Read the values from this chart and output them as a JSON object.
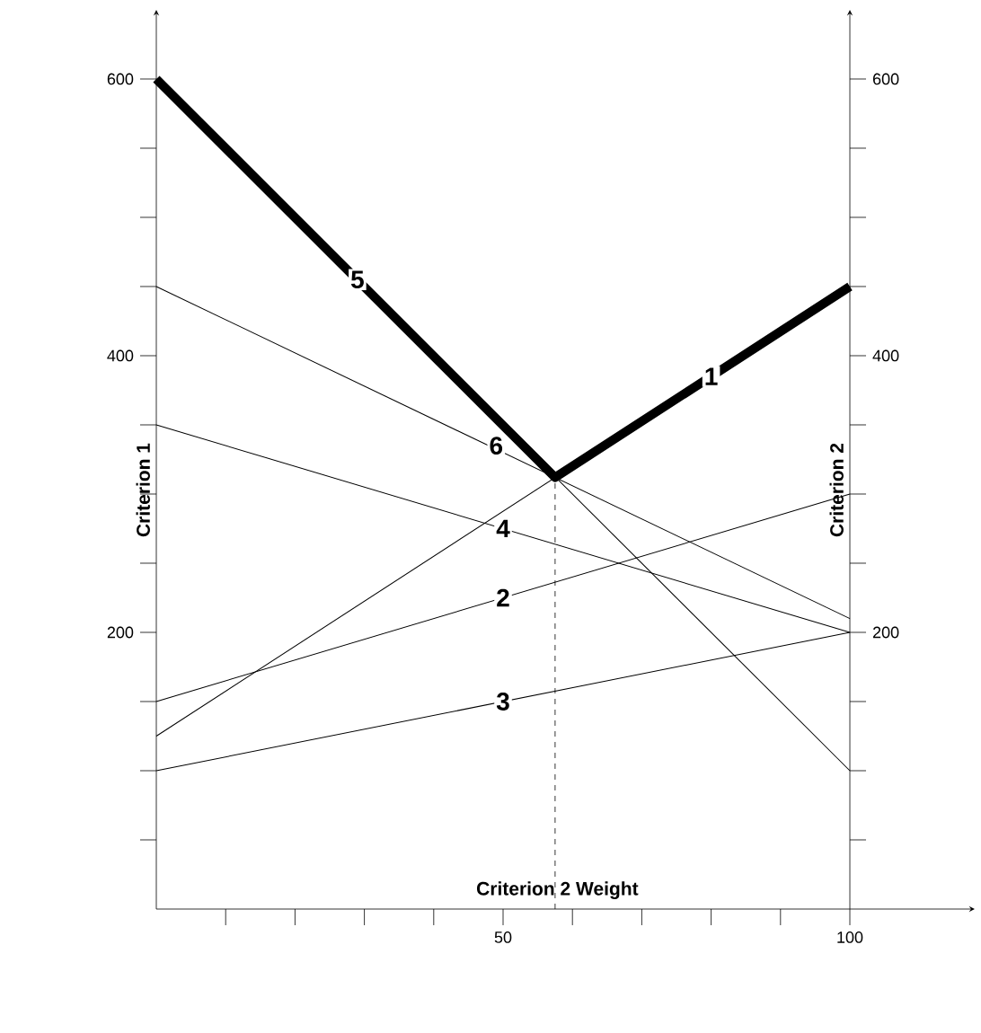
{
  "chart_data": {
    "type": "line",
    "xlabel": "Criterion 2 Weight",
    "ylabel": "Criterion 1",
    "y2label": "Criterion 2",
    "x": [
      0,
      100
    ],
    "series": [
      {
        "color": "#000000",
        "values": [
          600,
          100
        ]
      },
      {
        "color": "#000000",
        "values": [
          125,
          450
        ]
      },
      {
        "color": "#000000",
        "values": [
          450,
          210
        ]
      },
      {
        "color": "#000000",
        "values": [
          350,
          200
        ]
      },
      {
        "color": "#000000",
        "values": [
          150,
          300
        ]
      },
      {
        "color": "#000000",
        "values": [
          100,
          200
        ]
      },
      {
        "type": "line",
        "color": "#000000",
        "x": [
          0,
          57.5,
          100
        ],
        "values": [
          600,
          312,
          450
        ]
      }
    ],
    "annotations": [
      {
        "text": "5",
        "x": 29,
        "y": 455
      },
      {
        "text": "1",
        "x": 80,
        "y": 385
      },
      {
        "text": "6",
        "x": 49,
        "y": 335
      },
      {
        "text": "4",
        "x": 50,
        "y": 275
      },
      {
        "text": "2",
        "x": 50,
        "y": 225
      },
      {
        "text": "3",
        "x": 50,
        "y": 150
      }
    ],
    "ref_lines": [
      {
        "axis": "x",
        "value": 57.5,
        "line_style": "dashed"
      }
    ],
    "xlim": [
      0,
      118
    ],
    "ylim": [
      0,
      650
    ],
    "y2lim": [
      0,
      650
    ],
    "xticks": [
      {
        "value": 10,
        "label": null
      },
      {
        "value": 20,
        "label": null
      },
      {
        "value": 30,
        "label": null
      },
      {
        "value": 40,
        "label": null
      },
      50,
      {
        "value": 60,
        "label": null
      },
      {
        "value": 70,
        "label": null
      },
      {
        "value": 80,
        "label": null
      },
      {
        "value": 90,
        "label": null
      },
      100
    ],
    "yticks": [
      {
        "value": 50,
        "label": null
      },
      {
        "value": 100,
        "label": null
      },
      {
        "value": 150,
        "label": null
      },
      200,
      {
        "value": 250,
        "label": null
      },
      {
        "value": 300,
        "label": null
      },
      {
        "value": 350,
        "label": null
      },
      400,
      {
        "value": 450,
        "label": null
      },
      {
        "value": 500,
        "label": null
      },
      {
        "value": 550,
        "label": null
      },
      600
    ],
    "y2ticks": [
      {
        "value": 50,
        "label": null
      },
      {
        "value": 100,
        "label": null
      },
      {
        "value": 150,
        "label": null
      },
      200,
      {
        "value": 250,
        "label": null
      },
      {
        "value": 300,
        "label": null
      },
      {
        "value": 350,
        "label": null
      },
      400,
      {
        "value": 450,
        "label": null
      },
      {
        "value": 500,
        "label": null
      },
      {
        "value": 550,
        "label": null
      },
      600
    ],
    "marker": "none",
    "line_style": "solid"
  }
}
